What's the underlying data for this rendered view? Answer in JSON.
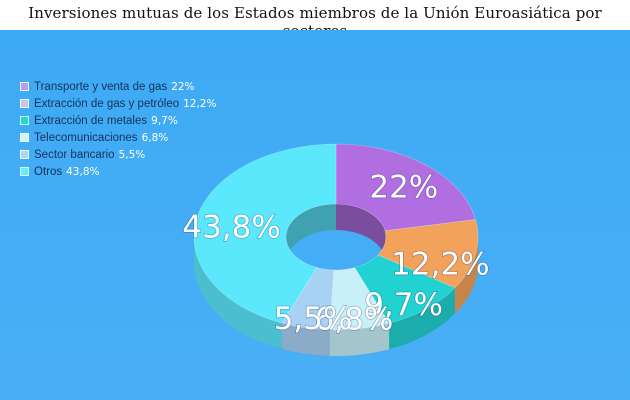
{
  "title": "Inversiones mutuas de los Estados miembros de la Unión Euroasiática por sectores",
  "chart_data": {
    "type": "pie",
    "variant": "3d-donut",
    "title": "Inversiones mutuas de los Estados miembros de la Unión Euroasiática por sectores",
    "legend_position": "top-left",
    "unit": "%",
    "categories": [
      "Transporte y venta de gas",
      "Extracción de gas y petróleo",
      "Extracción de metales",
      "Telecomunicaciones",
      "Sector bancario",
      "Otros"
    ],
    "values": [
      22,
      12.2,
      9.7,
      6.8,
      5.5,
      43.8
    ],
    "labels": [
      "22%",
      "12,2%",
      "9,7%",
      "6,8%",
      "5,5%",
      "43,8%"
    ],
    "colors": [
      "#b06ee0",
      "#f2a25a",
      "#22d2d2",
      "#c8f0f8",
      "#a8d2f4",
      "#5ce8fc"
    ],
    "legend_colors": [
      "#b89ef0",
      "#c8c4f0",
      "#20d8d8",
      "#d0f4fc",
      "#a8d8f4",
      "#5ef0fc"
    ]
  }
}
